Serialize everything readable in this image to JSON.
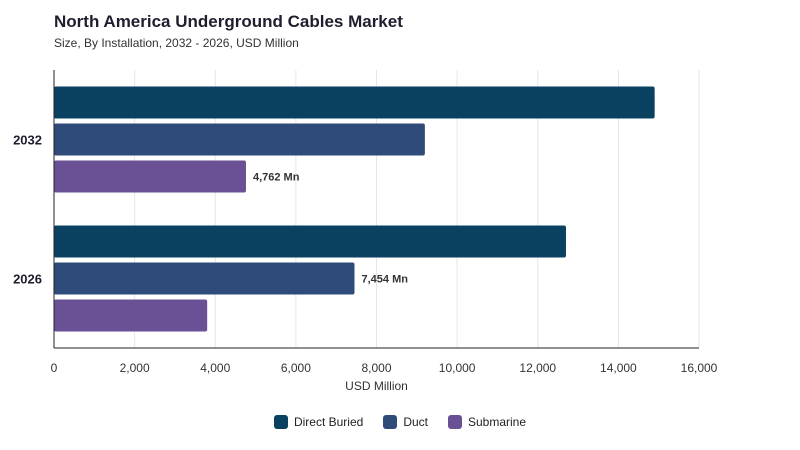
{
  "title": "North America Underground Cables Market",
  "subtitle": "Size, By Installation, 2032 - 2026, USD Million",
  "chart_data": {
    "type": "bar",
    "orientation": "horizontal",
    "categories": [
      "2032",
      "2026"
    ],
    "series": [
      {
        "name": "Direct Buried",
        "color": "#0b4160",
        "values": [
          14900,
          12700
        ]
      },
      {
        "name": "Duct",
        "color": "#2e4b7a",
        "values": [
          9200,
          7454
        ]
      },
      {
        "name": "Submarine",
        "color": "#6a5094",
        "values": [
          4762,
          3800
        ]
      }
    ],
    "data_labels": [
      {
        "series": 2,
        "category": 0,
        "text": "4,762 Mn"
      },
      {
        "series": 1,
        "category": 1,
        "text": "7,454 Mn"
      }
    ],
    "xlabel": "USD Million",
    "xlim": [
      0,
      16000
    ],
    "xticks": [
      0,
      2000,
      4000,
      6000,
      8000,
      10000,
      12000,
      14000,
      16000
    ],
    "xtick_labels": [
      "0",
      "2,000",
      "4,000",
      "6,000",
      "8,000",
      "10,000",
      "12,000",
      "14,000",
      "16,000"
    ],
    "grid": true,
    "legend_position": "bottom"
  }
}
